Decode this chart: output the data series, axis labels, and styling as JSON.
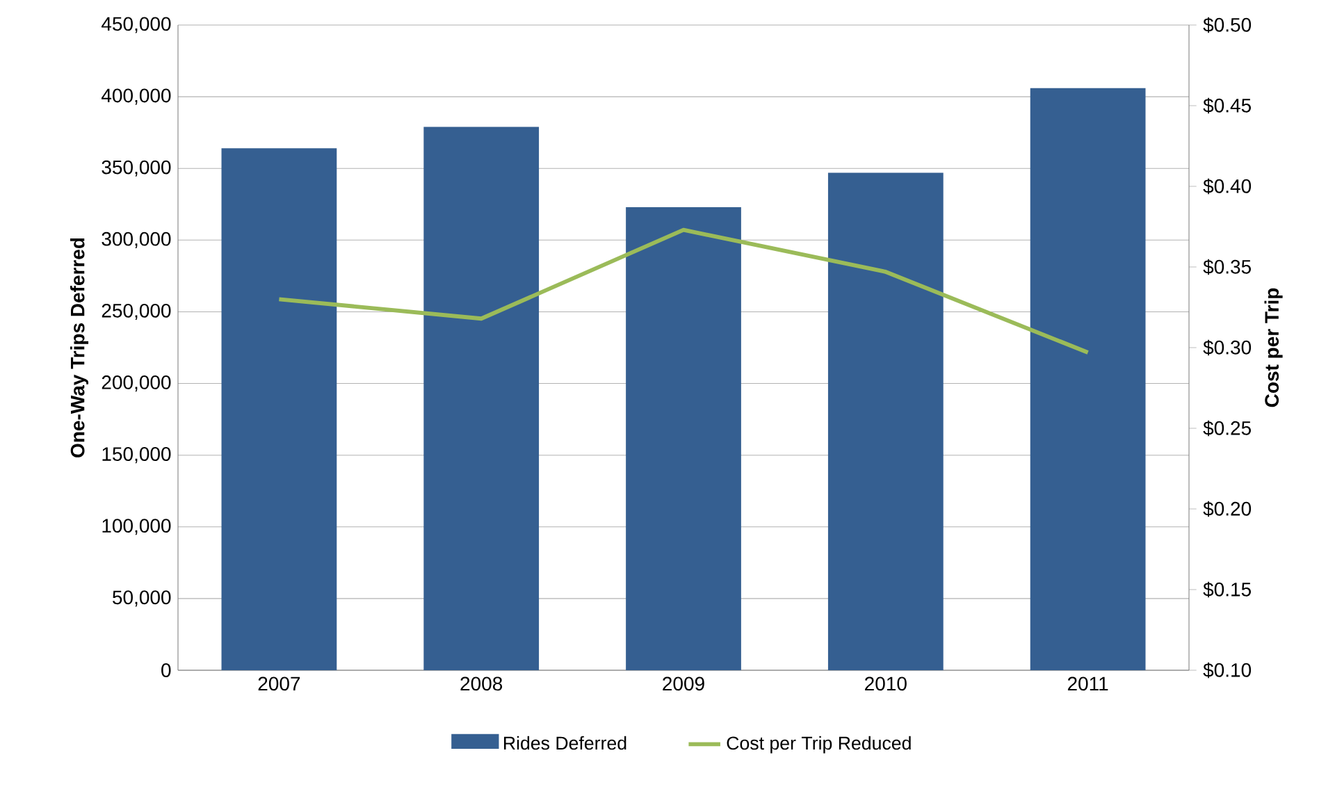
{
  "chart_data": {
    "type": "bar",
    "categories": [
      "2007",
      "2008",
      "2009",
      "2010",
      "2011"
    ],
    "ylabel": "One-Way Trips Deferred",
    "y2label": "Cost per Trip",
    "series": [
      {
        "name": "Rides Deferred",
        "color": "#355f91",
        "values": [
          364000,
          379000,
          323000,
          347000,
          406000
        ]
      },
      {
        "name": "Cost per Trip Reduced",
        "type": "line",
        "axis": "y2",
        "color": "#9bbb59",
        "values": [
          0.33,
          0.318,
          0.373,
          0.347,
          0.297
        ]
      }
    ],
    "ylim": [
      0,
      450000
    ],
    "yticks": [
      {
        "value": 0,
        "label": "0"
      },
      {
        "value": 50000,
        "label": "50,000"
      },
      {
        "value": 100000,
        "label": "100,000"
      },
      {
        "value": 150000,
        "label": "150,000"
      },
      {
        "value": 200000,
        "label": "200,000"
      },
      {
        "value": 250000,
        "label": "250,000"
      },
      {
        "value": 300000,
        "label": "300,000"
      },
      {
        "value": 350000,
        "label": "350,000"
      },
      {
        "value": 400000,
        "label": "400,000"
      },
      {
        "value": 450000,
        "label": "450,000"
      }
    ],
    "y2lim": [
      0.1,
      0.5
    ],
    "y2ticks": [
      {
        "value": 0.1,
        "label": "$0.10"
      },
      {
        "value": 0.15,
        "label": "$0.15"
      },
      {
        "value": 0.2,
        "label": "$0.20"
      },
      {
        "value": 0.25,
        "label": "$0.25"
      },
      {
        "value": 0.3,
        "label": "$0.30"
      },
      {
        "value": 0.35,
        "label": "$0.35"
      },
      {
        "value": 0.4,
        "label": "$0.40"
      },
      {
        "value": 0.45,
        "label": "$0.45"
      },
      {
        "value": 0.5,
        "label": "$0.50"
      }
    ],
    "grid": "y",
    "legend": "bottom"
  }
}
